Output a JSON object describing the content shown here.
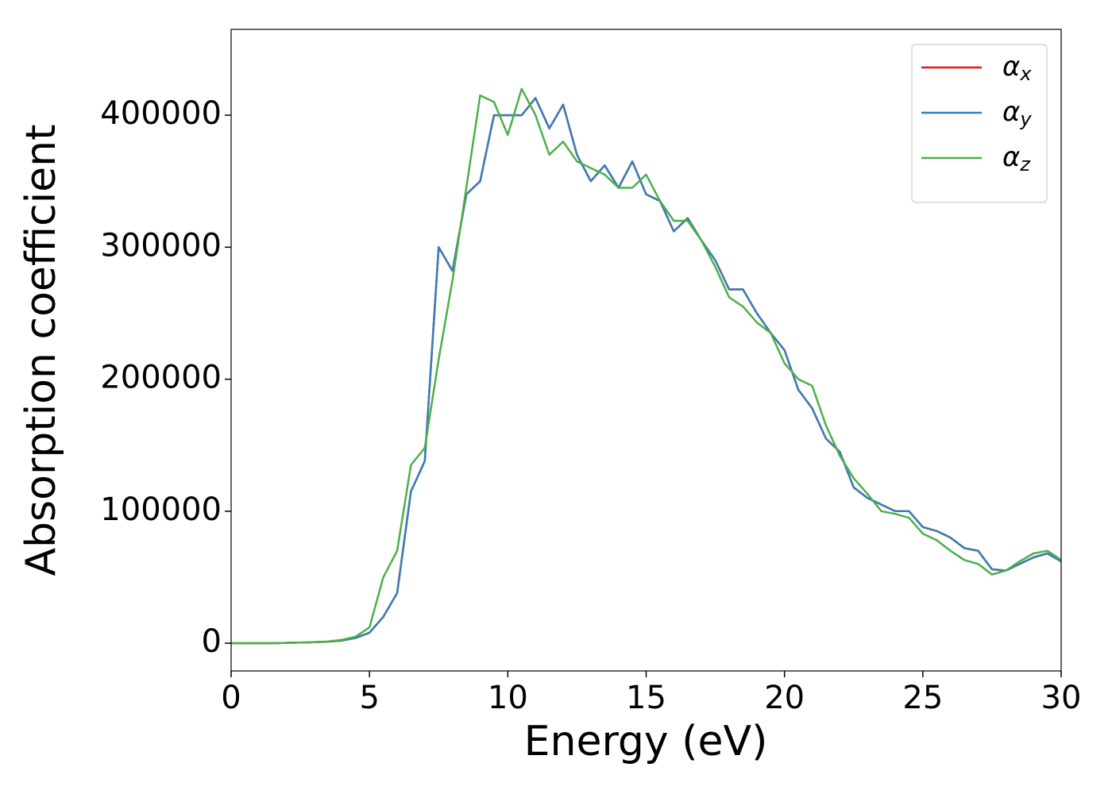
{
  "chart_data": {
    "type": "line",
    "x_label": "Energy (eV)",
    "y_label": "Absorption coefficient",
    "x": [
      0,
      0.5,
      1,
      1.5,
      2,
      2.5,
      3,
      3.5,
      4,
      4.5,
      5,
      5.5,
      6,
      6.5,
      7,
      7.5,
      8,
      8.5,
      9,
      9.5,
      10,
      10.5,
      11,
      11.5,
      12,
      12.5,
      13,
      13.5,
      14,
      14.5,
      15,
      15.5,
      16,
      16.5,
      17,
      17.5,
      18,
      18.5,
      19,
      19.5,
      20,
      20.5,
      21,
      21.5,
      22,
      22.5,
      23,
      23.5,
      24,
      24.5,
      25,
      25.5,
      26,
      26.5,
      27,
      27.5,
      28,
      28.5,
      29,
      29.5,
      30
    ],
    "series": [
      {
        "name": "αx",
        "color": "#e41a1c",
        "values": [
          0,
          0,
          0,
          0,
          300,
          500,
          800,
          1200,
          2000,
          4000,
          8000,
          20000,
          38000,
          115000,
          138000,
          300000,
          282000,
          340000,
          350000,
          400000,
          400000,
          400000,
          413000,
          390000,
          408000,
          370000,
          350000,
          362000,
          345000,
          365000,
          340000,
          335000,
          312000,
          322000,
          305000,
          290000,
          268000,
          268000,
          250000,
          235000,
          222000,
          192000,
          178000,
          155000,
          145000,
          118000,
          110000,
          105000,
          100000,
          100000,
          88000,
          85000,
          80000,
          72000,
          70000,
          56000,
          55000,
          60000,
          65000,
          68000,
          62000
        ]
      },
      {
        "name": "αy",
        "color": "#377eb8",
        "values": [
          0,
          0,
          0,
          0,
          300,
          500,
          800,
          1200,
          2000,
          4000,
          8000,
          20000,
          38000,
          115000,
          138000,
          300000,
          282000,
          340000,
          350000,
          400000,
          400000,
          400000,
          413000,
          390000,
          408000,
          370000,
          350000,
          362000,
          345000,
          365000,
          340000,
          335000,
          312000,
          322000,
          305000,
          290000,
          268000,
          268000,
          250000,
          235000,
          222000,
          192000,
          178000,
          155000,
          145000,
          118000,
          110000,
          105000,
          100000,
          100000,
          88000,
          85000,
          80000,
          72000,
          70000,
          56000,
          55000,
          60000,
          65000,
          68000,
          62000
        ]
      },
      {
        "name": "αz",
        "color": "#4daf4a",
        "values": [
          0,
          0,
          0,
          0,
          300,
          500,
          800,
          1300,
          2500,
          5000,
          12000,
          50000,
          70000,
          135000,
          148000,
          215000,
          275000,
          345000,
          415000,
          410000,
          385000,
          420000,
          400000,
          370000,
          380000,
          365000,
          360000,
          355000,
          345000,
          345000,
          355000,
          335000,
          320000,
          320000,
          305000,
          285000,
          262000,
          255000,
          243000,
          235000,
          212000,
          200000,
          195000,
          165000,
          142000,
          125000,
          113000,
          100000,
          98000,
          95000,
          83000,
          78000,
          70000,
          63000,
          60000,
          52000,
          55000,
          62000,
          68000,
          70000,
          63000
        ]
      }
    ],
    "xlim": [
      0,
      30
    ],
    "xticks": [
      0,
      5,
      10,
      15,
      20,
      25,
      30
    ],
    "ylim": [
      -21000,
      465000
    ],
    "yticks": [
      0,
      100000,
      200000,
      300000,
      400000
    ],
    "legend": "upper right"
  }
}
